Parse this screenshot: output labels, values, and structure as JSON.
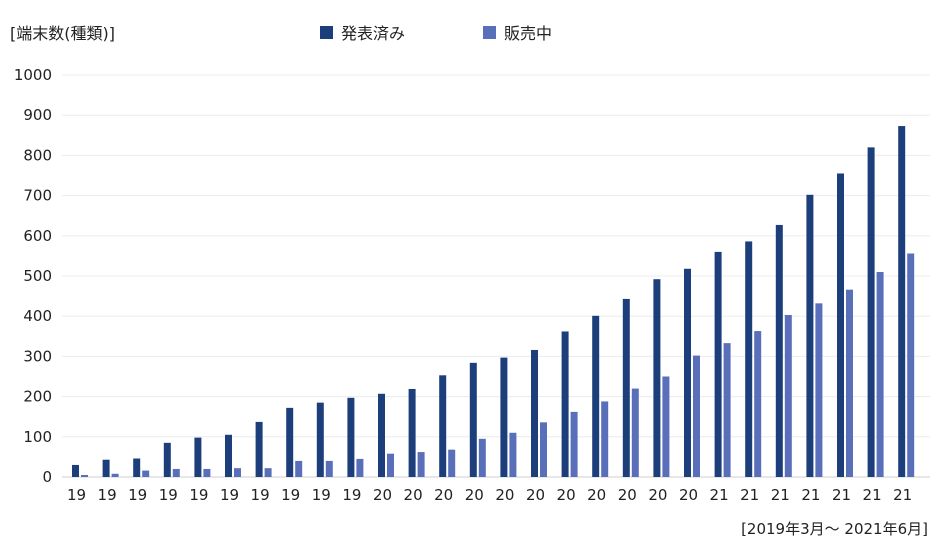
{
  "chart_data": {
    "type": "bar",
    "ylabel": "[端末数(種類)]",
    "xlabel": "[2019年3月〜 2021年6月]",
    "ylim": [
      0,
      1000
    ],
    "yticks": [
      "0",
      "100",
      "200",
      "300",
      "400",
      "500",
      "600",
      "700",
      "800",
      "900",
      "1000"
    ],
    "grid": true,
    "legend_position": "top-center",
    "categories": [
      "19",
      "19",
      "19",
      "19",
      "19",
      "19",
      "19",
      "19",
      "19",
      "19",
      "20",
      "20",
      "20",
      "20",
      "20",
      "20",
      "20",
      "20",
      "20",
      "20",
      "20",
      "21",
      "21",
      "21",
      "21",
      "21",
      "21",
      "21"
    ],
    "series": [
      {
        "name": "発表済み",
        "color": "#1c3f7c",
        "values": [
          30,
          43,
          46,
          85,
          98,
          105,
          137,
          172,
          185,
          197,
          207,
          219,
          253,
          284,
          297,
          316,
          362,
          401,
          443,
          492,
          518,
          560,
          586,
          627,
          702,
          755,
          820,
          873
        ]
      },
      {
        "name": "販売中",
        "color": "#5a6fba",
        "values": [
          5,
          8,
          16,
          20,
          20,
          22,
          22,
          40,
          40,
          45,
          58,
          62,
          68,
          95,
          110,
          136,
          162,
          188,
          220,
          250,
          302,
          333,
          363,
          403,
          432,
          466,
          510,
          556
        ]
      }
    ]
  }
}
